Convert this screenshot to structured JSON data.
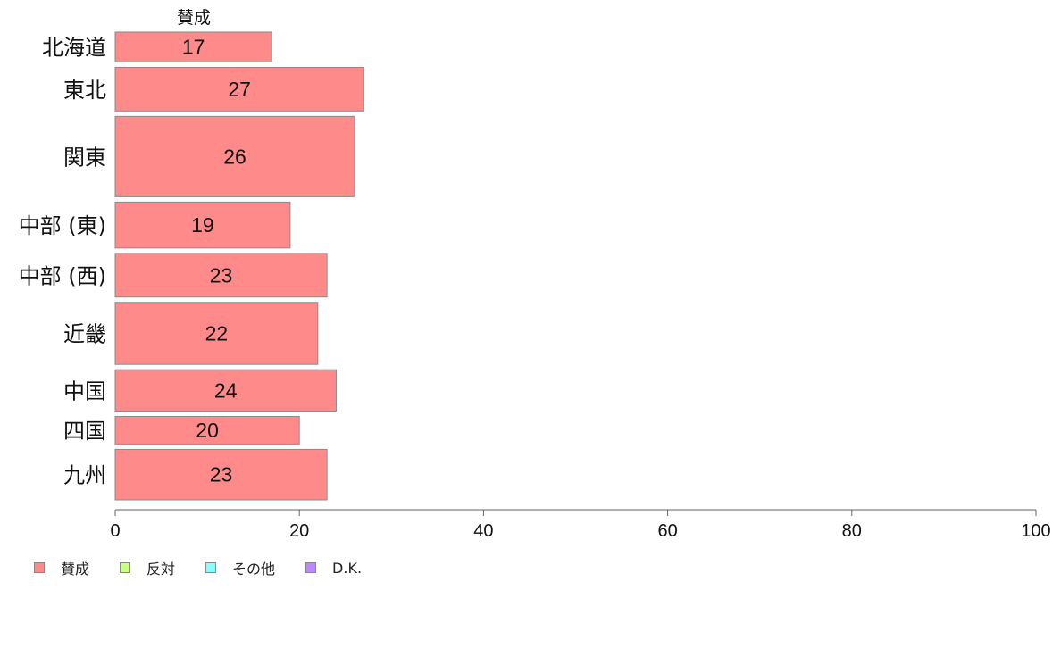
{
  "chart_data": {
    "type": "bar",
    "orientation": "horizontal",
    "column_header": "賛成",
    "categories": [
      "北海道",
      "東北",
      "関東",
      "中部 (東)",
      "中部 (西)",
      "近畿",
      "中国",
      "四国",
      "九州"
    ],
    "series": [
      {
        "name": "賛成",
        "values": [
          17,
          27,
          26,
          19,
          23,
          22,
          24,
          20,
          23
        ],
        "color": "#ff8a8a"
      }
    ],
    "bar_weights": [
      0.65,
      0.95,
      1.75,
      1.0,
      0.95,
      1.35,
      0.9,
      0.6,
      1.1
    ],
    "xlim": [
      0,
      100
    ],
    "xticks": [
      0,
      20,
      40,
      60,
      80,
      100
    ],
    "grid": false,
    "legend": {
      "position": "bottom-left",
      "entries": [
        {
          "label": "賛成",
          "color": "#ff8a8a"
        },
        {
          "label": "反対",
          "color": "#ccff88"
        },
        {
          "label": "その他",
          "color": "#88ffff"
        },
        {
          "label": "D.K.",
          "color": "#bb88ff"
        }
      ]
    }
  }
}
